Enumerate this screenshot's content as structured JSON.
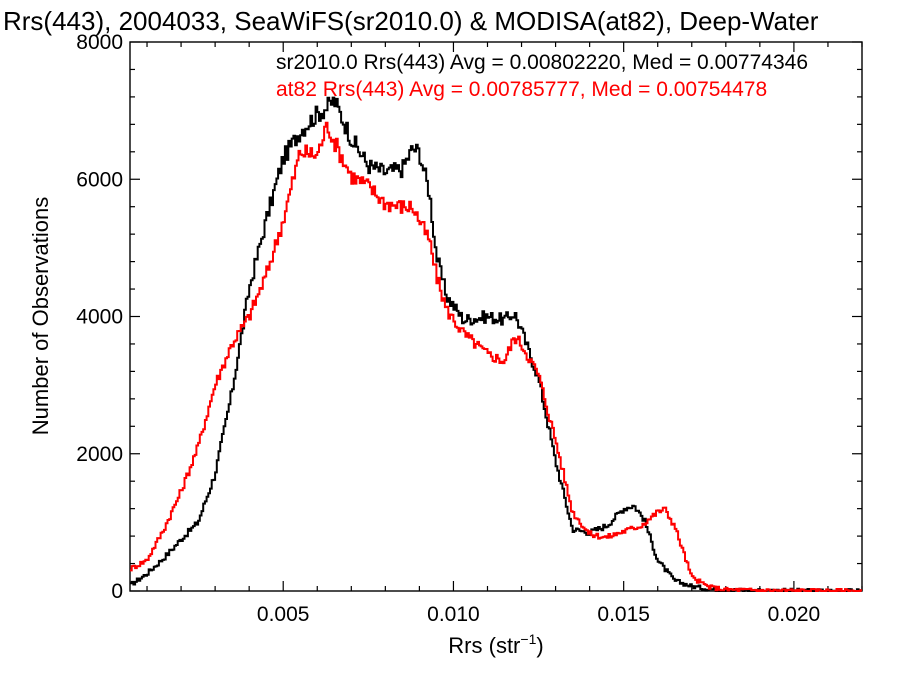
{
  "chart_data": {
    "type": "line",
    "title": "Rrs(443), 2004033, SeaWiFS(sr2010.0) & MODISA(at82), Deep-Water",
    "xlabel_main": "Rrs (str",
    "xlabel_sup": "−1",
    "xlabel_close": ")",
    "ylabel": "Number of Observations",
    "xlim": [
      0.0005,
      0.022
    ],
    "ylim": [
      0,
      8000
    ],
    "xticks": [
      0.005,
      0.01,
      0.015,
      0.02
    ],
    "xtick_labels": [
      "0.005",
      "0.010",
      "0.015",
      "0.020"
    ],
    "yticks": [
      0,
      2000,
      4000,
      6000,
      8000
    ],
    "ytick_labels": [
      "0",
      "2000",
      "4000",
      "6000",
      "8000"
    ],
    "grid": false,
    "annotations": [
      {
        "text": "sr2010.0 Rrs(443) Avg = 0.00802220, Med = 0.00774346",
        "color": "#000000"
      },
      {
        "text": "at82 Rrs(443) Avg = 0.00785777, Med = 0.00754478",
        "color": "#ff0000"
      }
    ],
    "series": [
      {
        "name": "sr2010.0",
        "color": "#000000",
        "x": [
          0.0005,
          0.001,
          0.0015,
          0.002,
          0.0025,
          0.003,
          0.0035,
          0.004,
          0.0045,
          0.005,
          0.0055,
          0.006,
          0.0063,
          0.0065,
          0.007,
          0.0075,
          0.008,
          0.0085,
          0.0088,
          0.009,
          0.0093,
          0.0095,
          0.0098,
          0.0103,
          0.011,
          0.0115,
          0.0118,
          0.012,
          0.0125,
          0.013,
          0.0135,
          0.014,
          0.0145,
          0.015,
          0.0153,
          0.0156,
          0.016,
          0.0165,
          0.017,
          0.0175,
          0.018,
          0.019,
          0.02,
          0.021,
          0.022
        ],
        "y": [
          80,
          250,
          480,
          750,
          1000,
          1700,
          2900,
          4400,
          5400,
          6300,
          6700,
          6950,
          7050,
          7150,
          6600,
          6200,
          6100,
          6150,
          6450,
          6400,
          5800,
          4900,
          4300,
          3950,
          4000,
          3950,
          4050,
          3800,
          3100,
          1900,
          900,
          850,
          950,
          1200,
          1250,
          1050,
          450,
          150,
          70,
          30,
          15,
          8,
          5,
          3,
          0
        ]
      },
      {
        "name": "at82",
        "color": "#ff0000",
        "x": [
          0.0005,
          0.001,
          0.0015,
          0.002,
          0.0025,
          0.003,
          0.0035,
          0.004,
          0.0045,
          0.005,
          0.0055,
          0.006,
          0.0063,
          0.0065,
          0.007,
          0.0075,
          0.008,
          0.0085,
          0.0088,
          0.009,
          0.0093,
          0.0095,
          0.0098,
          0.0103,
          0.011,
          0.0115,
          0.0118,
          0.012,
          0.0125,
          0.013,
          0.0135,
          0.014,
          0.0145,
          0.015,
          0.0155,
          0.016,
          0.0162,
          0.0165,
          0.017,
          0.0175,
          0.018,
          0.019,
          0.02,
          0.021,
          0.022
        ],
        "y": [
          320,
          450,
          900,
          1450,
          2100,
          3000,
          3600,
          4000,
          4600,
          5400,
          6400,
          6350,
          6800,
          6550,
          6050,
          5900,
          5650,
          5600,
          5600,
          5400,
          5100,
          4600,
          4100,
          3750,
          3450,
          3350,
          3700,
          3600,
          3150,
          2200,
          1150,
          830,
          780,
          870,
          950,
          1150,
          1200,
          950,
          200,
          60,
          20,
          10,
          5,
          3,
          0
        ]
      }
    ]
  }
}
